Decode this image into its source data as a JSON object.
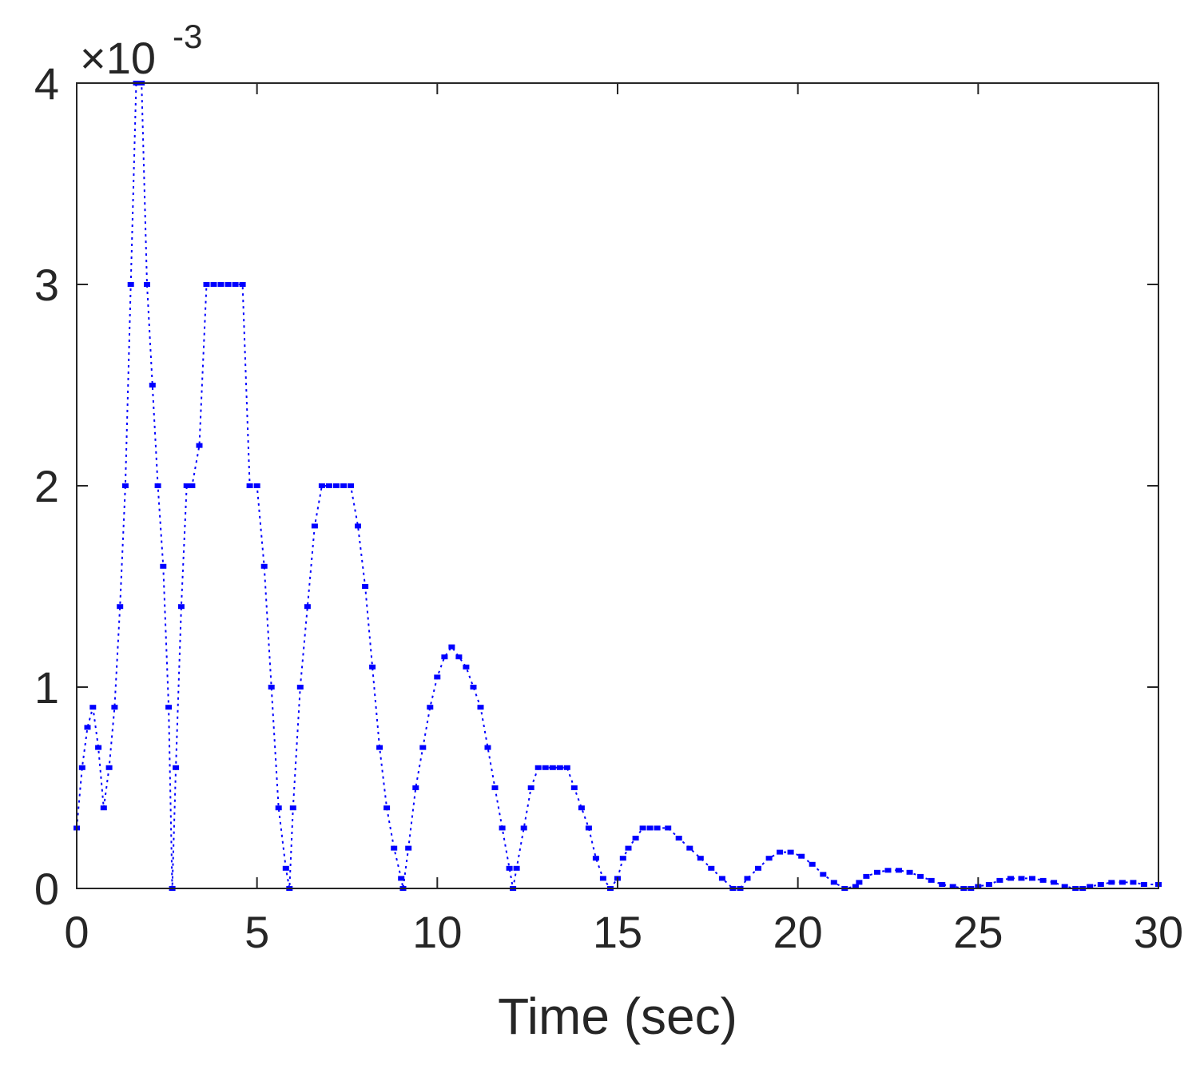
{
  "chart_data": {
    "type": "line",
    "title": "",
    "xlabel": "Time (sec)",
    "ylabel": "",
    "xlim": [
      0,
      30
    ],
    "ylim": [
      0,
      4
    ],
    "xticks": [
      "0",
      "5",
      "10",
      "15",
      "20",
      "25",
      "30"
    ],
    "yticks": [
      "0",
      "1",
      "2",
      "3",
      "4"
    ],
    "y_exponent": {
      "base": "×10",
      "power": "-3"
    },
    "grid": false,
    "series": [
      {
        "color": "#0000ff",
        "x": [
          0.0,
          0.15,
          0.3,
          0.45,
          0.6,
          0.75,
          0.9,
          1.05,
          1.2,
          1.35,
          1.5,
          1.65,
          1.8,
          1.95,
          2.1,
          2.25,
          2.4,
          2.55,
          2.65,
          2.75,
          2.9,
          3.05,
          3.2,
          3.4,
          3.6,
          3.8,
          4.0,
          4.2,
          4.4,
          4.6,
          4.8,
          5.0,
          5.2,
          5.4,
          5.6,
          5.8,
          5.9,
          6.0,
          6.2,
          6.4,
          6.6,
          6.8,
          7.0,
          7.2,
          7.4,
          7.6,
          7.8,
          8.0,
          8.2,
          8.4,
          8.6,
          8.8,
          9.0,
          9.05,
          9.2,
          9.4,
          9.6,
          9.8,
          10.0,
          10.2,
          10.4,
          10.6,
          10.8,
          11.0,
          11.2,
          11.4,
          11.6,
          11.8,
          12.0,
          12.1,
          12.2,
          12.4,
          12.6,
          12.8,
          13.0,
          13.2,
          13.4,
          13.6,
          13.8,
          14.0,
          14.2,
          14.4,
          14.6,
          14.8,
          15.0,
          15.15,
          15.3,
          15.5,
          15.7,
          15.9,
          16.1,
          16.4,
          16.7,
          17.0,
          17.3,
          17.6,
          17.9,
          18.2,
          18.4,
          18.6,
          18.9,
          19.2,
          19.5,
          19.8,
          20.1,
          20.4,
          20.7,
          21.0,
          21.3,
          21.6,
          21.7,
          21.9,
          22.2,
          22.5,
          22.8,
          23.1,
          23.4,
          23.7,
          24.0,
          24.3,
          24.6,
          24.8,
          25.0,
          25.3,
          25.6,
          25.9,
          26.2,
          26.5,
          26.8,
          27.1,
          27.4,
          27.7,
          27.9,
          28.1,
          28.4,
          28.7,
          29.0,
          29.3,
          29.6,
          30.0
        ],
        "y": [
          0.3,
          0.6,
          0.8,
          0.9,
          0.7,
          0.4,
          0.6,
          0.9,
          1.4,
          2.0,
          3.0,
          4.0,
          4.0,
          3.0,
          2.5,
          2.0,
          1.6,
          0.9,
          0.0,
          0.6,
          1.4,
          2.0,
          2.0,
          2.2,
          3.0,
          3.0,
          3.0,
          3.0,
          3.0,
          3.0,
          2.0,
          2.0,
          1.6,
          1.0,
          0.4,
          0.1,
          0.0,
          0.4,
          1.0,
          1.4,
          1.8,
          2.0,
          2.0,
          2.0,
          2.0,
          2.0,
          1.8,
          1.5,
          1.1,
          0.7,
          0.4,
          0.2,
          0.05,
          0.0,
          0.2,
          0.5,
          0.7,
          0.9,
          1.05,
          1.15,
          1.2,
          1.15,
          1.1,
          1.0,
          0.9,
          0.7,
          0.5,
          0.3,
          0.1,
          0.0,
          0.1,
          0.3,
          0.5,
          0.6,
          0.6,
          0.6,
          0.6,
          0.6,
          0.5,
          0.4,
          0.3,
          0.15,
          0.05,
          0.0,
          0.05,
          0.15,
          0.2,
          0.25,
          0.3,
          0.3,
          0.3,
          0.3,
          0.25,
          0.2,
          0.15,
          0.1,
          0.05,
          0.0,
          0.0,
          0.05,
          0.1,
          0.15,
          0.18,
          0.18,
          0.16,
          0.12,
          0.07,
          0.03,
          0.0,
          0.01,
          0.03,
          0.06,
          0.08,
          0.09,
          0.09,
          0.08,
          0.06,
          0.04,
          0.02,
          0.01,
          0.0,
          0.0,
          0.01,
          0.02,
          0.04,
          0.05,
          0.05,
          0.05,
          0.04,
          0.03,
          0.01,
          0.0,
          0.0,
          0.01,
          0.02,
          0.03,
          0.03,
          0.03,
          0.02,
          0.02
        ]
      }
    ]
  }
}
